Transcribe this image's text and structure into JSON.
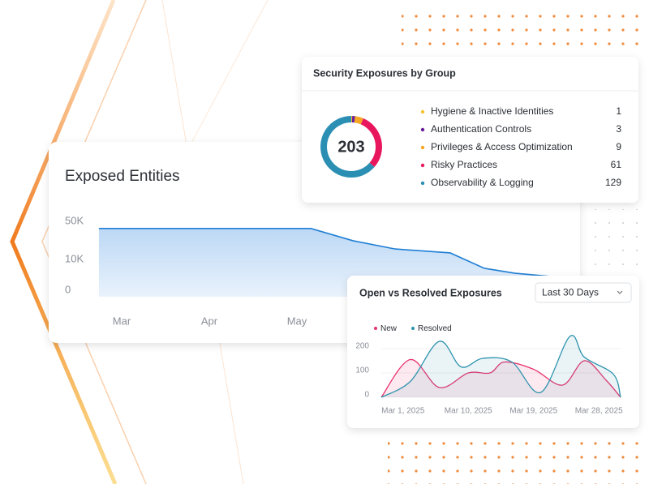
{
  "chart_data": [
    {
      "type": "area",
      "title": "Exposed Entities",
      "x": [
        -0.26,
        2.16,
        2.64,
        3.12,
        3.75,
        4.14,
        4.49,
        5.0
      ],
      "values": [
        49000,
        49000,
        33000,
        24000,
        20200,
        8500,
        5800,
        4000
      ],
      "color": "#1f7fd4",
      "xlim": [
        -0.5,
        5.5
      ],
      "xticks": [
        {
          "value": 0,
          "label": "Mar"
        },
        {
          "value": 1,
          "label": "Apr"
        },
        {
          "value": 2,
          "label": "May"
        }
      ],
      "ylim": [
        0,
        50000
      ],
      "yscale": "sqrt",
      "yticks": [
        0,
        {
          "value": 10000,
          "label": "10K"
        },
        {
          "value": 50000,
          "label": "50K"
        }
      ]
    },
    {
      "type": "donut",
      "title": "Security Exposures by Group",
      "total": 203,
      "categories": [
        "Hygiene & Inactive Identities",
        "Authentication Controls",
        "Privileges & Access Optimization",
        "Risky Practices",
        "Observability & Logging"
      ],
      "values": [
        1,
        3,
        9,
        61,
        129
      ],
      "colors": [
        "#f4c430",
        "#6a1b9a",
        "#f5a623",
        "#e8175d",
        "#2b8fb3"
      ]
    },
    {
      "type": "line",
      "title": "Open vs Resolved Exposures",
      "filter": "Last 30 Days",
      "smooth": true,
      "series": [
        {
          "name": "New",
          "color": "#e8336d",
          "x": [
            "2025-02-26",
            "2025-03-02",
            "2025-03-06",
            "2025-03-10",
            "2025-03-13",
            "2025-03-15",
            "2025-03-19",
            "2025-03-23",
            "2025-03-26",
            "2025-03-29",
            "2025-03-31"
          ],
          "values": [
            0,
            155,
            40,
            100,
            100,
            145,
            115,
            50,
            150,
            70,
            0
          ]
        },
        {
          "name": "Resolved",
          "color": "#2d93ad",
          "x": [
            "2025-02-26",
            "2025-03-02",
            "2025-03-06",
            "2025-03-09",
            "2025-03-12",
            "2025-03-16",
            "2025-03-20",
            "2025-03-24",
            "2025-03-26",
            "2025-03-30",
            "2025-03-31"
          ],
          "values": [
            0,
            65,
            230,
            125,
            160,
            145,
            20,
            250,
            165,
            95,
            0
          ]
        }
      ],
      "xlim": [
        "2025-02-26",
        "2025-03-31"
      ],
      "xticks": [
        {
          "value": "2025-03-01",
          "label": "Mar 1, 2025"
        },
        {
          "value": "2025-03-10",
          "label": "Mar 10, 2025"
        },
        {
          "value": "2025-03-19",
          "label": "Mar 19, 2025"
        },
        {
          "value": "2025-03-28",
          "label": "Mar 28, 2025"
        }
      ],
      "ylim": [
        0,
        250
      ],
      "yticks": [
        0,
        100,
        200
      ]
    }
  ]
}
